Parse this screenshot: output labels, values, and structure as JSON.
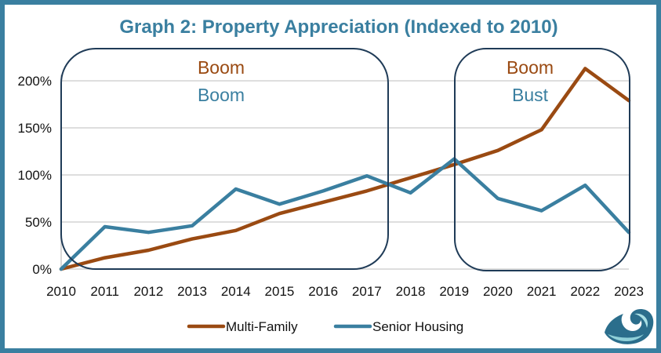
{
  "chart_data": {
    "type": "line",
    "title": "Graph 2: Property Appreciation (Indexed to 2010)",
    "xlabel": "",
    "ylabel": "",
    "x": [
      "2010",
      "2011",
      "2012",
      "2013",
      "2014",
      "2015",
      "2016",
      "2017",
      "2018",
      "2019",
      "2020",
      "2021",
      "2022",
      "2023"
    ],
    "ylim": [
      0,
      200
    ],
    "yticks": [
      0,
      50,
      100,
      150,
      200
    ],
    "ytick_labels": [
      "0%",
      "50%",
      "100%",
      "150%",
      "200%"
    ],
    "grid": true,
    "legend_position": "bottom",
    "series": [
      {
        "name": "Multi-Family",
        "color": "#9a4a12",
        "values": [
          0,
          12,
          20,
          32,
          41,
          59,
          71,
          83,
          97,
          111,
          126,
          148,
          213,
          179
        ]
      },
      {
        "name": "Senior Housing",
        "color": "#3a7fa0",
        "values": [
          0,
          45,
          39,
          46,
          85,
          69,
          83,
          99,
          81,
          117,
          75,
          62,
          89,
          39
        ]
      }
    ],
    "annotations": [
      {
        "id": "period-1",
        "x_range": [
          "2010",
          "2017"
        ],
        "labels": [
          {
            "text": "Boom",
            "series": "Multi-Family"
          },
          {
            "text": "Boom",
            "series": "Senior Housing"
          }
        ]
      },
      {
        "id": "period-2",
        "x_range": [
          "2019",
          "2023"
        ],
        "labels": [
          {
            "text": "Boom",
            "series": "Multi-Family"
          },
          {
            "text": "Bust",
            "series": "Senior Housing"
          }
        ]
      }
    ]
  },
  "colors": {
    "frame": "#3a7fa0",
    "title": "#3a7fa0",
    "annotation_box": "#1f3b57",
    "grid": "#d4d4d4"
  },
  "logo": {
    "icon": "wave-logo-icon"
  }
}
